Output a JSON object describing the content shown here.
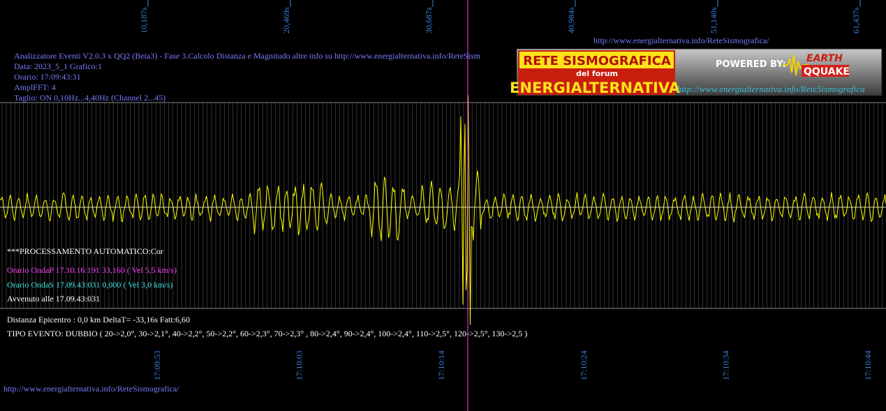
{
  "top_axis": {
    "labels": [
      "10,187s",
      "20,469s",
      "30,687s",
      "40,984s",
      "51,140s",
      "61,437s"
    ]
  },
  "bottom_axis": {
    "labels": [
      "17:09:53",
      "17:10:03",
      "17:10:14",
      "17:10:24",
      "17:10:34",
      "17:10:44"
    ]
  },
  "header": {
    "url": "http://www.energialternativa.info/ReteSismografica/",
    "lines": [
      "Analizzatore Eventi V2.0.3 x QQ2 (Beta3) - Fase 3.Calcolo Distanza e Magnitudo altre info su http://www.energialternativa.info/ReteSism",
      "Data: 2023_5_1 Grafico:1",
      "Orario: 17:09:43:31",
      "AmplFFT: 4",
      "Taglio: ON 0,10Hz...4,40Hz      (Channel 2...45)"
    ]
  },
  "logo": {
    "title": "RETE SISMOGRAFICA",
    "subtitle": "del forum",
    "name": "ENERGIALTERNATIVA",
    "powered": "POWERED BY:",
    "brand_top": "EARTH",
    "brand_bottom": "QQUAKE",
    "url": "http://www.energialternativa.info/ReteSismografica"
  },
  "results": {
    "processing": "***PROCESSAMENTO AUTOMATICO:Cor",
    "wave_p": "Orario OndaP 17.10.16:191  33,160 ( Vel 5,5 km/s)",
    "wave_s": "Orario OndaS 17.09.43:031  0,000 ( Vel 3,0 km/s)",
    "occurred": "Avvenuto alle 17.09.43:031",
    "distance": "Distanza Epicentro : 0,0 km DeltaT= -33,16s  Fatt:6,60",
    "event_type": "TIPO EVENTO: DUBBIO ( 20->2,0°, 30->2,1°, 40->2,2°, 50->2,2°, 60->2,3°, 70->2,3° , 80->2,4°, 90->2,4°, 100->2,4°, 110->2,5°, 120->2,5°, 130->2,5 )"
  },
  "footer": {
    "url": "http://www.energialternativa.info/ReteSismografica/"
  }
}
